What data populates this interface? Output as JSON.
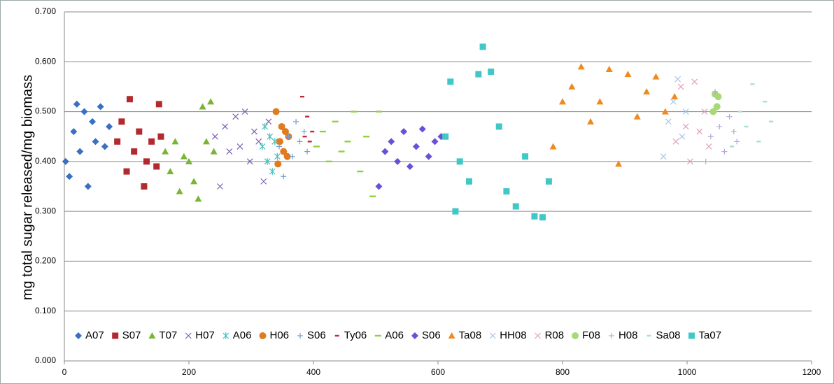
{
  "chart_data": {
    "type": "scatter",
    "y_label": "mg total sugar released/mg biomass",
    "xlim": [
      0,
      1200
    ],
    "xticks": [
      0,
      200,
      400,
      600,
      800,
      1000,
      1200
    ],
    "ylim": [
      0,
      0.7
    ],
    "yticks": [
      {
        "value": 0,
        "label": "0.000"
      },
      {
        "value": 0.1,
        "label": "0.100"
      },
      {
        "value": 0.2,
        "label": "0.200"
      },
      {
        "value": 0.3,
        "label": "0.300"
      },
      {
        "value": 0.4,
        "label": "0.400"
      },
      {
        "value": 0.5,
        "label": "0.500"
      },
      {
        "value": 0.6,
        "label": "0.600"
      },
      {
        "value": 0.7,
        "label": "0.700"
      }
    ],
    "grid": true,
    "legend": "bottom",
    "series": [
      {
        "name": "A07",
        "color": "#3a6fc4",
        "marker": "diamond",
        "x": [
          2,
          8,
          15,
          20,
          25,
          32,
          38,
          45,
          50,
          58,
          65,
          72
        ],
        "values": [
          0.4,
          0.37,
          0.46,
          0.515,
          0.42,
          0.5,
          0.35,
          0.48,
          0.44,
          0.51,
          0.43,
          0.47
        ]
      },
      {
        "name": "S07",
        "color": "#b22a2e",
        "marker": "square",
        "x": [
          85,
          92,
          100,
          105,
          112,
          120,
          128,
          132,
          140,
          148,
          152,
          155
        ],
        "values": [
          0.44,
          0.48,
          0.38,
          0.525,
          0.42,
          0.46,
          0.35,
          0.4,
          0.44,
          0.39,
          0.515,
          0.45
        ]
      },
      {
        "name": "T07",
        "color": "#7ab532",
        "marker": "triangle",
        "x": [
          162,
          170,
          178,
          185,
          192,
          200,
          208,
          215,
          222,
          228,
          235,
          240
        ],
        "values": [
          0.42,
          0.38,
          0.44,
          0.34,
          0.41,
          0.4,
          0.36,
          0.325,
          0.51,
          0.44,
          0.52,
          0.42
        ]
      },
      {
        "name": "H07",
        "color": "#7b5fb3",
        "marker": "x",
        "x": [
          242,
          250,
          258,
          265,
          275,
          282,
          290,
          298,
          305,
          312,
          320,
          328
        ],
        "values": [
          0.45,
          0.35,
          0.47,
          0.42,
          0.49,
          0.43,
          0.5,
          0.4,
          0.46,
          0.44,
          0.36,
          0.48
        ]
      },
      {
        "name": "A06",
        "color": "#4bbfbf",
        "marker": "star",
        "x": [
          318,
          322,
          326,
          330,
          334,
          338,
          342
        ],
        "values": [
          0.43,
          0.47,
          0.4,
          0.45,
          0.38,
          0.44,
          0.41
        ]
      },
      {
        "name": "H06",
        "color": "#e07b1f",
        "marker": "circle",
        "x": [
          340,
          343,
          346,
          349,
          352,
          355,
          358,
          360
        ],
        "values": [
          0.5,
          0.395,
          0.44,
          0.47,
          0.42,
          0.46,
          0.41,
          0.45
        ]
      },
      {
        "name": "S06",
        "color": "#6e9fd6",
        "marker": "plus",
        "x": [
          345,
          352,
          360,
          366,
          372,
          378,
          385,
          390
        ],
        "values": [
          0.43,
          0.37,
          0.45,
          0.41,
          0.48,
          0.44,
          0.46,
          0.42
        ]
      },
      {
        "name": "Ty06",
        "color": "#c0283c",
        "marker": "dash",
        "x": [
          382,
          386,
          390,
          394,
          398
        ],
        "values": [
          0.53,
          0.45,
          0.49,
          0.44,
          0.46
        ]
      },
      {
        "name": "A06",
        "color": "#8fd040",
        "marker": "longdash",
        "x": [
          405,
          415,
          425,
          435,
          445,
          455,
          465,
          475,
          485,
          495,
          505
        ],
        "values": [
          0.43,
          0.46,
          0.4,
          0.48,
          0.42,
          0.44,
          0.5,
          0.38,
          0.45,
          0.33,
          0.5
        ]
      },
      {
        "name": "S06",
        "color": "#6a4fd8",
        "marker": "diamond",
        "x": [
          505,
          515,
          525,
          535,
          545,
          555,
          565,
          575,
          585,
          595,
          605
        ],
        "values": [
          0.35,
          0.42,
          0.44,
          0.4,
          0.46,
          0.39,
          0.43,
          0.465,
          0.41,
          0.44,
          0.45
        ]
      },
      {
        "name": "Ta08",
        "color": "#f08a1d",
        "marker": "triangle",
        "x": [
          785,
          800,
          815,
          830,
          845,
          860,
          875,
          890,
          905,
          920,
          935,
          950,
          965,
          980
        ],
        "values": [
          0.43,
          0.52,
          0.55,
          0.59,
          0.48,
          0.52,
          0.585,
          0.395,
          0.575,
          0.49,
          0.54,
          0.57,
          0.5,
          0.53
        ]
      },
      {
        "name": "HH08",
        "color": "#a9c4e8",
        "marker": "x",
        "x": [
          962,
          970,
          978,
          985,
          992,
          998
        ],
        "values": [
          0.41,
          0.48,
          0.52,
          0.565,
          0.45,
          0.5
        ]
      },
      {
        "name": "R08",
        "color": "#e0a0b8",
        "marker": "x",
        "x": [
          982,
          990,
          998,
          1005,
          1012,
          1020,
          1028,
          1035
        ],
        "values": [
          0.44,
          0.55,
          0.47,
          0.4,
          0.56,
          0.46,
          0.5,
          0.43
        ]
      },
      {
        "name": "F08",
        "color": "#a8d878",
        "marker": "circle",
        "x": [
          1042,
          1045,
          1048,
          1050
        ],
        "values": [
          0.5,
          0.535,
          0.51,
          0.53
        ]
      },
      {
        "name": "H08",
        "color": "#b6a8dc",
        "marker": "plus",
        "x": [
          1030,
          1038,
          1045,
          1052,
          1060,
          1068,
          1075,
          1080
        ],
        "values": [
          0.4,
          0.45,
          0.54,
          0.47,
          0.42,
          0.49,
          0.46,
          0.44
        ]
      },
      {
        "name": "Sa08",
        "color": "#a8dcd8",
        "marker": "dash",
        "x": [
          1072,
          1085,
          1095,
          1105,
          1115,
          1125,
          1135
        ],
        "values": [
          0.43,
          0.5,
          0.47,
          0.555,
          0.44,
          0.52,
          0.48
        ]
      },
      {
        "name": "Ta07",
        "color": "#40c8c8",
        "marker": "square",
        "x": [
          612,
          620,
          628,
          635,
          650,
          665,
          672,
          685,
          698,
          710,
          725,
          740,
          755,
          768,
          778
        ],
        "values": [
          0.45,
          0.56,
          0.3,
          0.4,
          0.36,
          0.575,
          0.63,
          0.58,
          0.47,
          0.34,
          0.31,
          0.41,
          0.29,
          0.288,
          0.36
        ]
      }
    ]
  }
}
